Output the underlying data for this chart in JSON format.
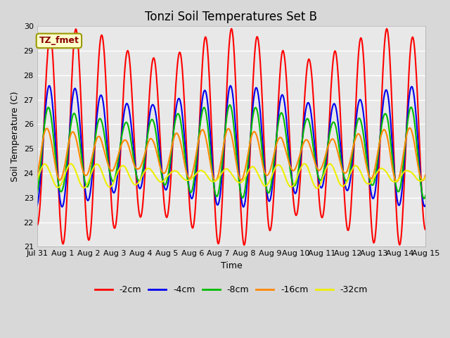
{
  "title": "Tonzi Soil Temperatures Set B",
  "xlabel": "Time",
  "ylabel": "Soil Temperature (C)",
  "ylim": [
    21.0,
    30.0
  ],
  "yticks": [
    21.0,
    22.0,
    23.0,
    24.0,
    25.0,
    26.0,
    27.0,
    28.0,
    29.0,
    30.0
  ],
  "fig_facecolor": "#d8d8d8",
  "axes_facecolor": "#e8e8e8",
  "annotation_text": "TZ_fmet",
  "annotation_facecolor": "#ffffcc",
  "annotation_edgecolor": "#999900",
  "annotation_textcolor": "#880000",
  "series_names": [
    "-2cm",
    "-4cm",
    "-8cm",
    "-16cm",
    "-32cm"
  ],
  "series_colors": [
    "#ff0000",
    "#0000ee",
    "#00bb00",
    "#ff8800",
    "#eeee00"
  ],
  "series_linewidths": [
    1.5,
    1.5,
    1.5,
    1.5,
    1.5
  ],
  "x_tick_labels": [
    "Jul 31",
    "Aug 1",
    "Aug 2",
    "Aug 3",
    "Aug 4",
    "Aug 5",
    "Aug 6",
    "Aug 7",
    "Aug 8",
    "Aug 9",
    "Aug 10",
    "Aug 11",
    "Aug 12",
    "Aug 13",
    "Aug 14",
    "Aug 15"
  ],
  "total_days": 15,
  "n_points": 720
}
